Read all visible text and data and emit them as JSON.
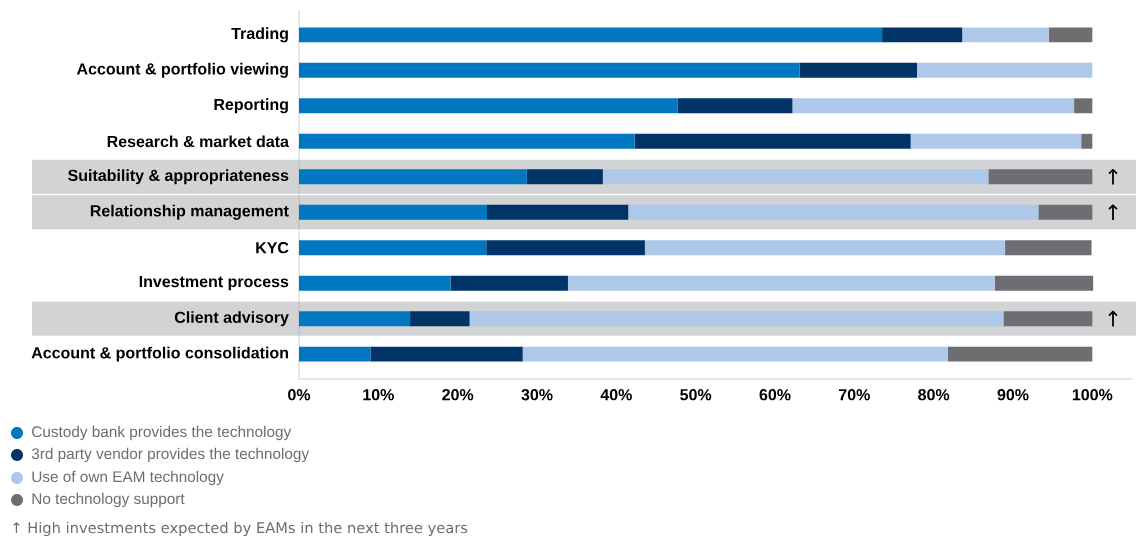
{
  "chart_data": {
    "type": "bar",
    "orientation": "horizontal",
    "stacked": true,
    "categories": [
      "Trading",
      "Account & portfolio viewing",
      "Reporting",
      "Research & market data",
      "Suitability & appropriateness",
      "Relationship management",
      "KYC",
      "Investment process",
      "Client advisory",
      "Account & portfolio consolidation"
    ],
    "series": [
      {
        "name": "Custody bank provides the technology",
        "color": "#0077c0",
        "values": [
          73.5,
          63.1,
          47.7,
          42.3,
          28.7,
          23.7,
          23.6,
          19.1,
          14.0,
          9.0
        ]
      },
      {
        "name": "3rd party vendor provides the technology",
        "color": "#003466",
        "values": [
          10.1,
          14.8,
          14.5,
          34.8,
          9.6,
          17.8,
          20.0,
          14.8,
          7.5,
          19.2
        ]
      },
      {
        "name": "Use of own EAM technology",
        "color": "#adc8e8",
        "values": [
          10.9,
          22.1,
          35.5,
          21.5,
          48.6,
          51.7,
          45.4,
          53.8,
          67.3,
          53.6
        ]
      },
      {
        "name": "No technology support",
        "color": "#6d6e71",
        "values": [
          5.5,
          0,
          2.3,
          1.4,
          13.1,
          6.8,
          10.9,
          12.4,
          11.2,
          18.2
        ]
      }
    ],
    "xlim": [
      0,
      105
    ],
    "xticks": [
      {
        "value": 0,
        "label": "0%"
      },
      {
        "value": 10,
        "label": "10%"
      },
      {
        "value": 20,
        "label": "20%"
      },
      {
        "value": 30,
        "label": "30%"
      },
      {
        "value": 40,
        "label": "40%"
      },
      {
        "value": 50,
        "label": "50%"
      },
      {
        "value": 60,
        "label": "60%"
      },
      {
        "value": 70,
        "label": "70%"
      },
      {
        "value": 80,
        "label": "80%"
      },
      {
        "value": 90,
        "label": "90%"
      },
      {
        "value": 100,
        "label": "100%"
      }
    ],
    "bands": [
      {
        "axis": "y",
        "from": "Suitability & appropriateness",
        "to": "Suitability & appropriateness",
        "color": "#d1d3d5",
        "label": "↑"
      },
      {
        "axis": "y",
        "from": "Relationship management",
        "to": "Relationship management",
        "color": "#d1d3d5",
        "label": "↑"
      },
      {
        "axis": "y",
        "from": "Client advisory",
        "to": "Client advisory",
        "color": "#d1d3d5",
        "label": "↑"
      }
    ],
    "annotations": [
      "↑ High investments expected by EAMs in the next three years"
    ],
    "legend": "bottom left",
    "grid": false
  }
}
